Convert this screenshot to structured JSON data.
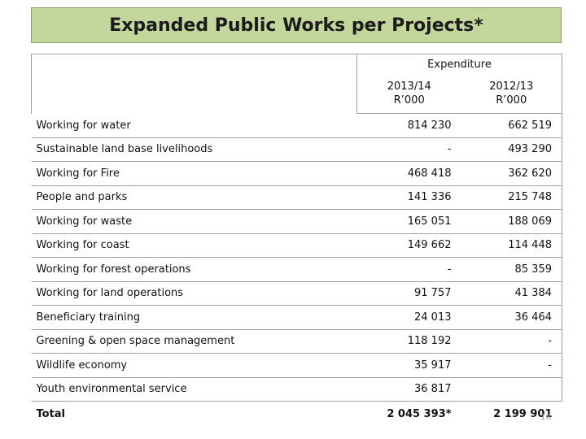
{
  "title": "Expanded Public Works per Projects*",
  "header": {
    "group": "Expenditure",
    "col1_line1": "2013/14",
    "col1_line2": "R’000",
    "col2_line1": "2012/13",
    "col2_line2": "R’000"
  },
  "rows": [
    {
      "label": "Working for water",
      "v2013": "814 230",
      "v2012": "662 519"
    },
    {
      "label": "Sustainable land base livelihoods",
      "v2013": "-",
      "v2012": "493 290"
    },
    {
      "label": "Working for Fire",
      "v2013": "468 418",
      "v2012": "362 620"
    },
    {
      "label": "People and parks",
      "v2013": "141 336",
      "v2012": "215 748"
    },
    {
      "label": "Working for waste",
      "v2013": "165 051",
      "v2012": "188 069"
    },
    {
      "label": "Working for coast",
      "v2013": "149 662",
      "v2012": "114 448"
    },
    {
      "label": "Working for forest operations",
      "v2013": "-",
      "v2012": "85 359"
    },
    {
      "label": "Working for land operations",
      "v2013": "91 757",
      "v2012": "41 384"
    },
    {
      "label": "Beneficiary training",
      "v2013": "24 013",
      "v2012": "36 464"
    },
    {
      "label": "Greening & open space management",
      "v2013": "118 192",
      "v2012": "-"
    },
    {
      "label": "Wildlife economy",
      "v2013": "35 917",
      "v2012": "-"
    },
    {
      "label": "Youth environmental service",
      "v2013": "36 817",
      "v2012": ""
    }
  ],
  "total": {
    "label": "Total",
    "v2013": "2 045 393*",
    "v2012": "2 199 901"
  },
  "page_number": "16"
}
